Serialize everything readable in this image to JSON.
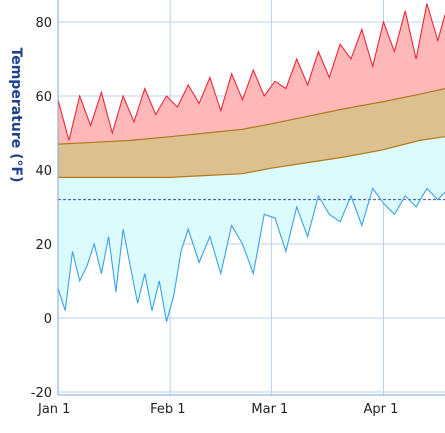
{
  "chart_data": {
    "type": "area",
    "ylabel": "Temperature (°F)",
    "ylim": [
      -20,
      85
    ],
    "xlim": [
      "Jan 1",
      "Apr 17"
    ],
    "yticks": [
      "-20",
      "0",
      "20",
      "40",
      "60",
      "80"
    ],
    "xticks": [
      {
        "label": "Jan 1",
        "day": 1
      },
      {
        "label": "Feb 1",
        "day": 32
      },
      {
        "label": "Mar 1",
        "day": 60
      },
      {
        "label": "Apr 1",
        "day": 91
      }
    ],
    "grid": true,
    "reference_line": {
      "value": 32,
      "style": "dashed"
    },
    "bands": {
      "days": [
        1,
        11,
        21,
        32,
        42,
        52,
        60,
        70,
        80,
        91,
        101,
        108
      ],
      "normal_low": [
        38,
        38,
        38,
        38,
        38.5,
        39,
        40.5,
        42,
        43.5,
        45.5,
        48,
        49
      ],
      "normal_high": [
        47,
        47.5,
        48,
        49,
        50,
        51,
        52.5,
        54.5,
        56.5,
        58.5,
        60.5,
        62
      ]
    },
    "series": [
      {
        "role": "daily_high",
        "color": "#e8283c",
        "fill": "#ffb8b8",
        "days": [
          1,
          4,
          7,
          10,
          13,
          16,
          19,
          22,
          25,
          28,
          31,
          34,
          37,
          40,
          43,
          46,
          49,
          52,
          55,
          58,
          61,
          64,
          67,
          70,
          73,
          76,
          79,
          82,
          85,
          88,
          91,
          94,
          97,
          100,
          103,
          106,
          108
        ],
        "values": [
          59,
          48,
          60,
          52,
          61,
          50,
          60,
          53,
          62,
          55,
          60,
          57,
          63,
          58,
          65,
          56,
          66,
          59,
          67,
          60,
          64,
          62,
          70,
          63,
          72,
          65,
          74,
          70,
          78,
          68,
          80,
          72,
          83,
          70,
          85,
          75,
          82
        ]
      },
      {
        "role": "daily_low",
        "color": "#3aa0e6",
        "fill": "#dcfbfd",
        "days": [
          1,
          3,
          5,
          7,
          9,
          11,
          13,
          15,
          17,
          19,
          21,
          23,
          25,
          27,
          29,
          31,
          33,
          35,
          37,
          40,
          43,
          46,
          49,
          52,
          55,
          58,
          61,
          64,
          67,
          70,
          73,
          76,
          79,
          82,
          85,
          88,
          91,
          94,
          97,
          100,
          103,
          106,
          108
        ],
        "values": [
          8,
          2,
          18,
          10,
          14,
          20,
          12,
          22,
          7,
          24,
          14,
          4,
          12,
          2,
          10,
          -1,
          6,
          18,
          24,
          15,
          22,
          12,
          25,
          20,
          12,
          28,
          27,
          18,
          30,
          22,
          33,
          28,
          26,
          33,
          25,
          35,
          31,
          28,
          33,
          30,
          35,
          32,
          34
        ]
      }
    ],
    "colors": {
      "grid": "#b8d2ee",
      "axis": "#7fa8d8",
      "band_fill": "#dcc08f",
      "band_line": "#b07a1a",
      "freeze_line": "#3050b0"
    }
  }
}
